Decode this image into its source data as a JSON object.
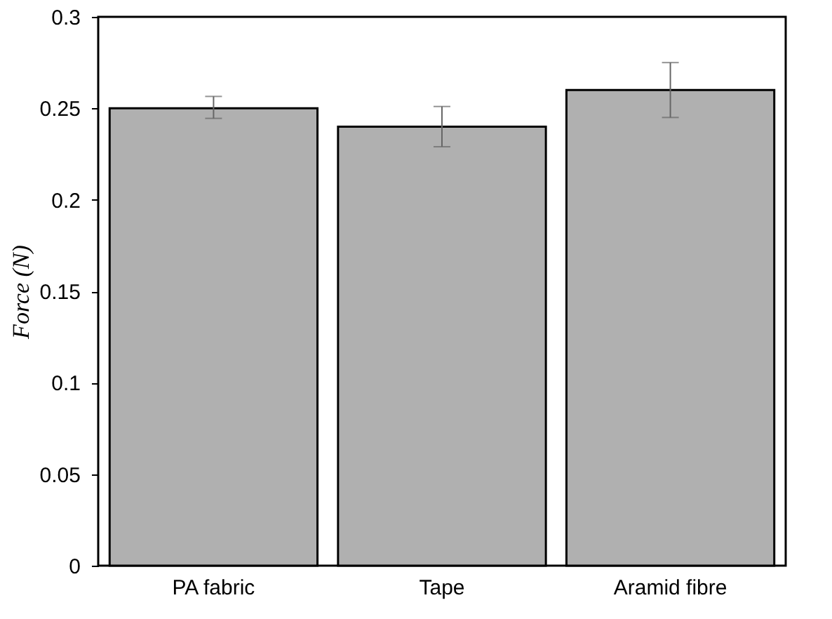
{
  "chart_data": {
    "type": "bar",
    "ylabel": "Force (N)",
    "categories": [
      "PA fabric",
      "Tape",
      "Aramid fibre"
    ],
    "values": [
      0.25,
      0.24,
      0.26
    ],
    "errors": [
      [
        0.2445,
        0.2565
      ],
      [
        0.229,
        0.251
      ],
      [
        0.245,
        0.275
      ]
    ],
    "color": "#b0b0b0",
    "ylim": [
      0,
      0.3
    ],
    "yticks": [
      0,
      0.05,
      0.1,
      0.15,
      0.2,
      0.25,
      0.3
    ],
    "grid": false
  }
}
